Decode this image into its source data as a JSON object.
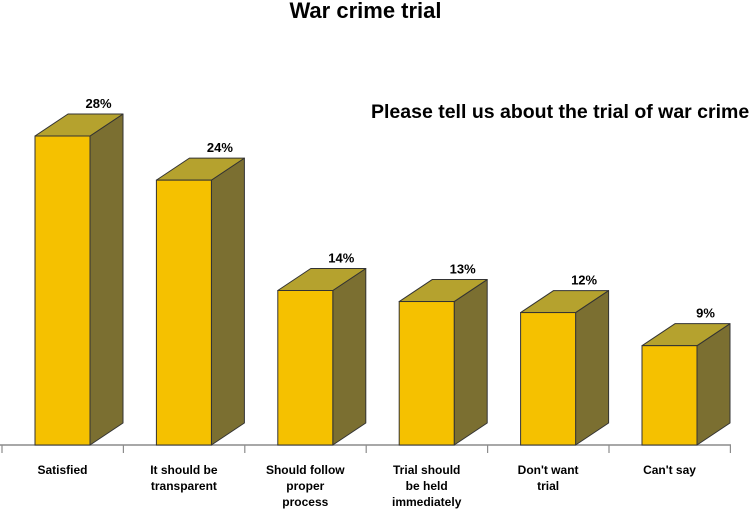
{
  "chart_data": {
    "type": "bar",
    "title": "War crime trial",
    "subtitle": "Please tell us about the trial of war crime?",
    "categories": [
      "Satisfied",
      "It should be\ntransparent",
      "Should follow\nproper\nprocess",
      "Trial should\nbe held\nimmediately",
      "Don't want\ntrial",
      "Can't say"
    ],
    "values": [
      28,
      24,
      14,
      13,
      12,
      9
    ],
    "value_labels": [
      "28%",
      "24%",
      "14%",
      "13%",
      "12%",
      "9%"
    ],
    "ylim": [
      0,
      30
    ],
    "grid": false,
    "legend": "none",
    "colors": {
      "front": "#f5c100",
      "side": "#7b6f31",
      "top": "#b5a22e",
      "edge": "#333333"
    }
  }
}
